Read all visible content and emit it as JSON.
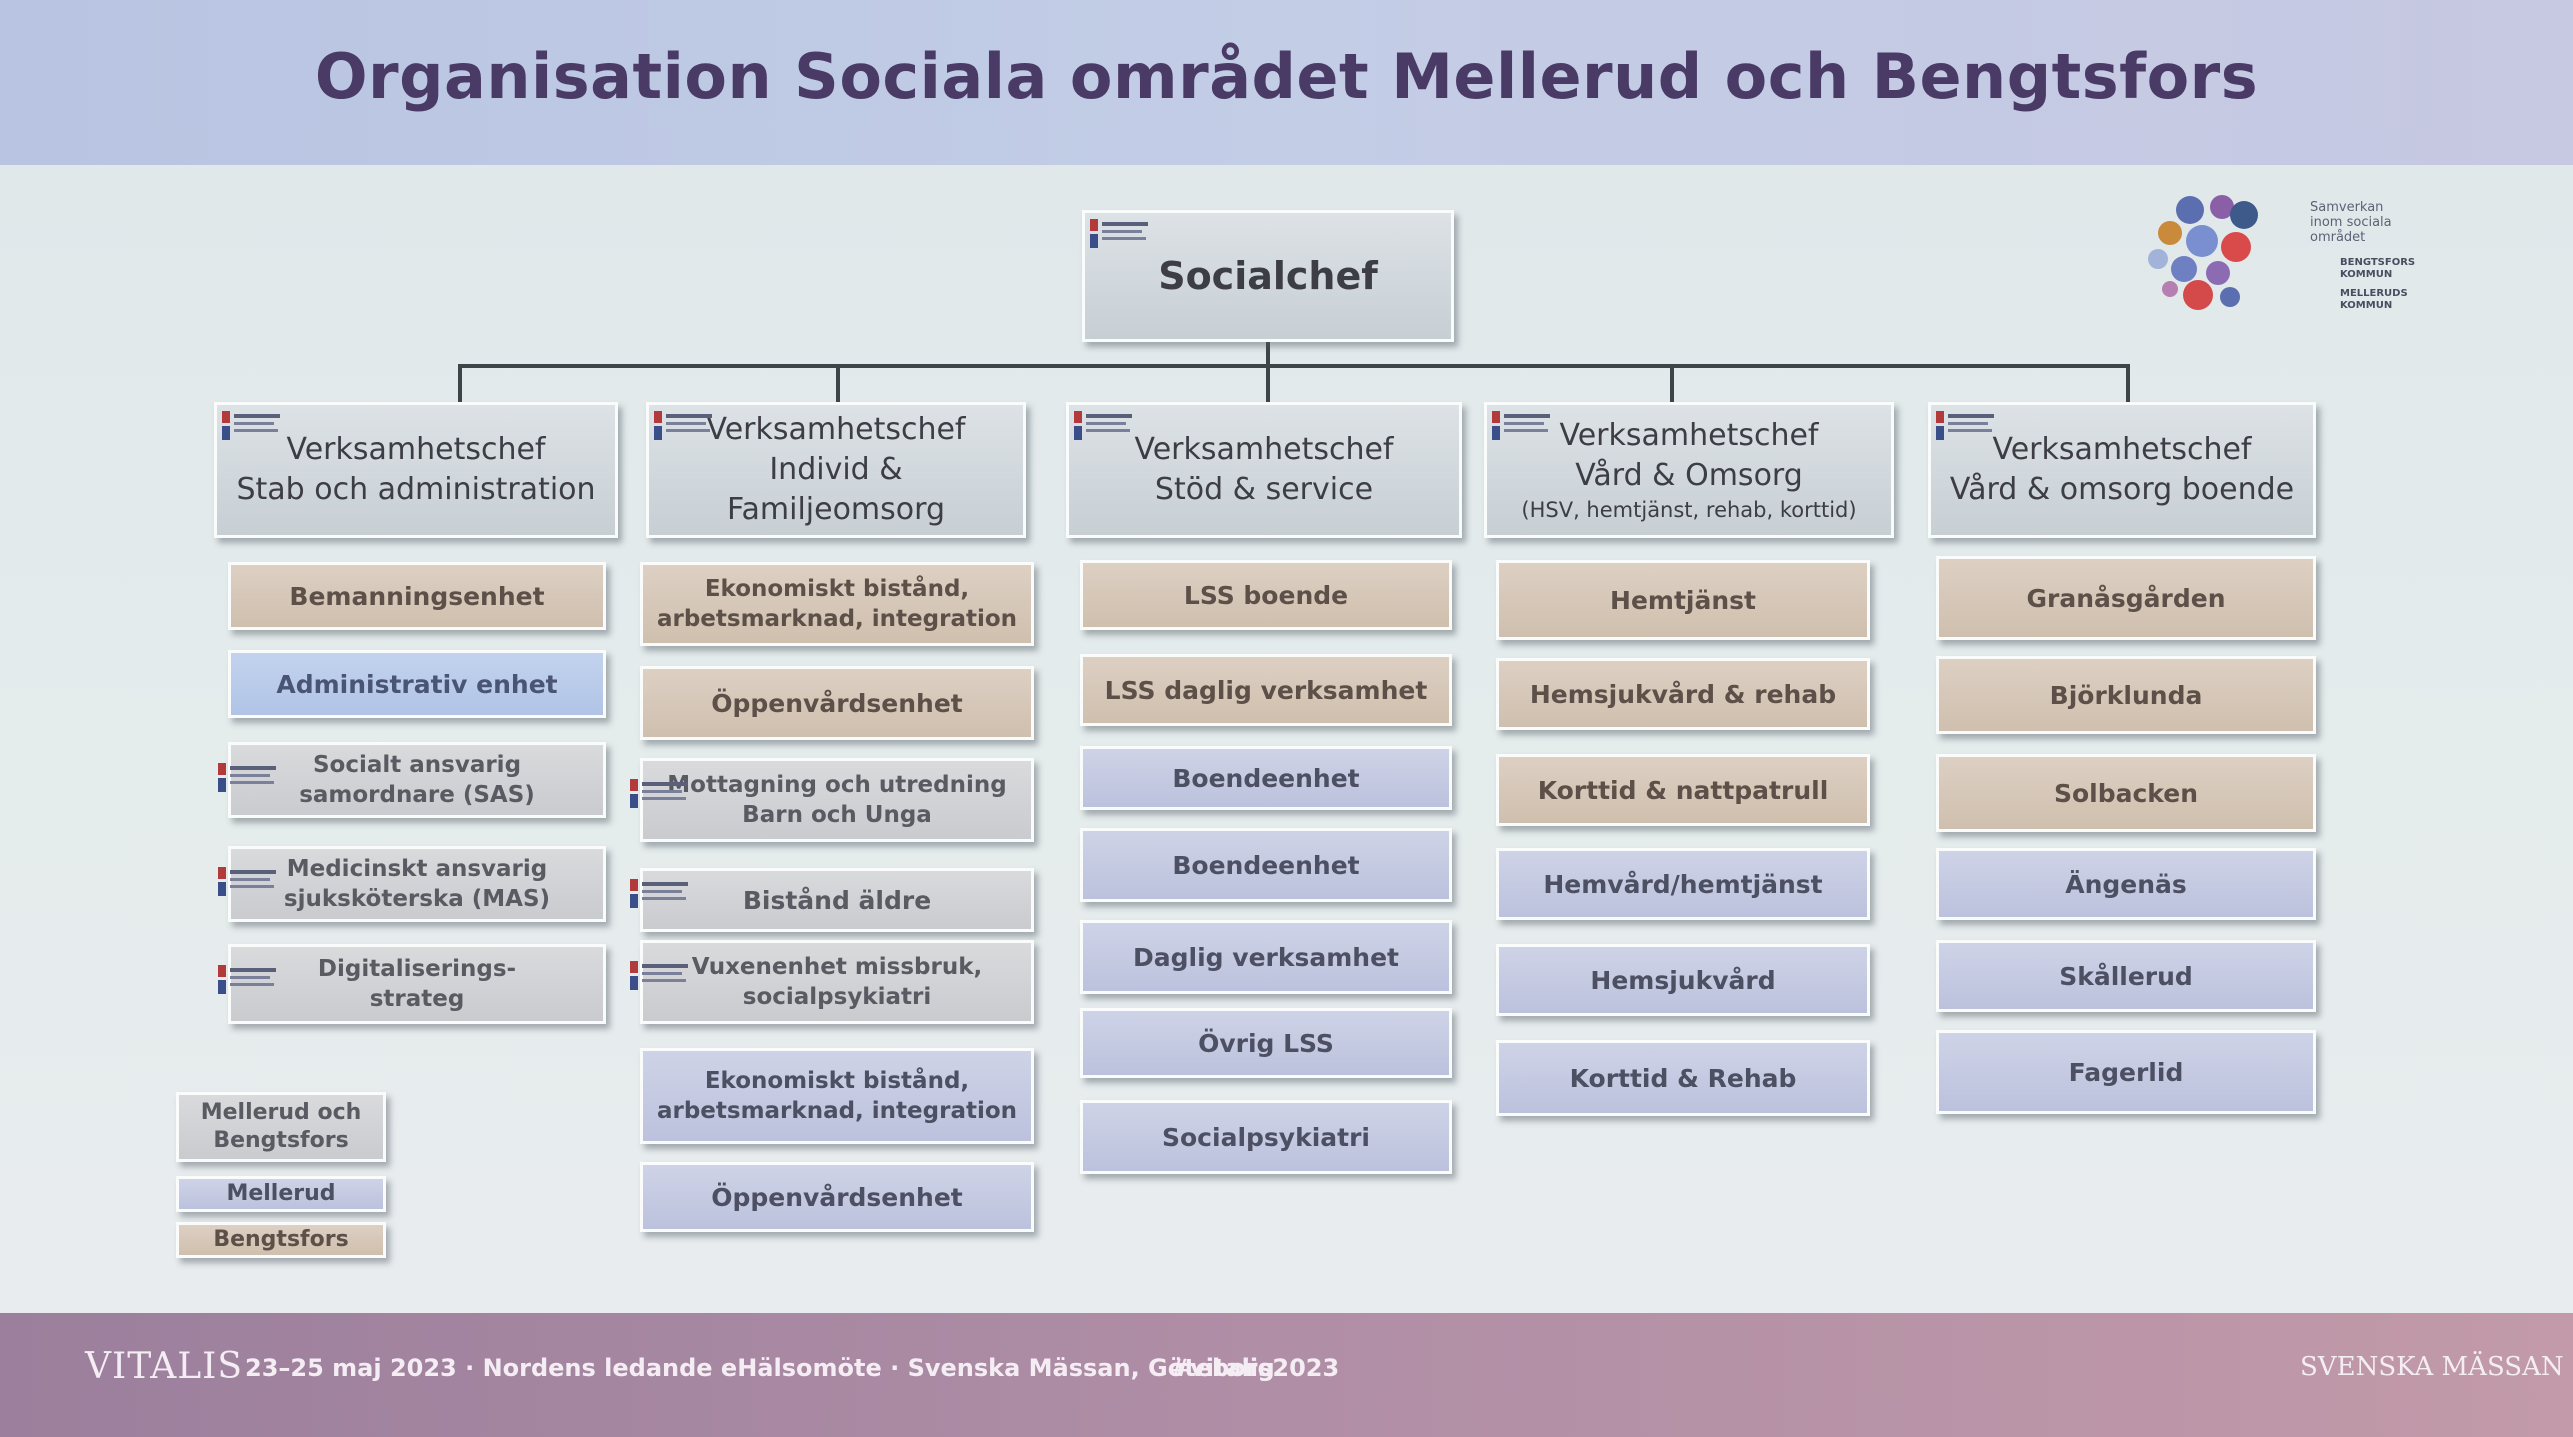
{
  "title": "Organisation Sociala området Mellerud och Bengtsfors",
  "root": "Socialchef",
  "columns": [
    {
      "head_lines": [
        "Verksamhetschef",
        "Stab och administration"
      ],
      "items": [
        {
          "text": "Bemanningsenhet",
          "type": "b"
        },
        {
          "text": "Administrativ enhet",
          "type": "admin"
        },
        {
          "lines": [
            "Socialt ansvarig",
            "samordnare (SAS)"
          ],
          "type": "mb"
        },
        {
          "lines": [
            "Medicinskt ansvarig",
            "sjuksköterska (MAS)"
          ],
          "type": "mb"
        },
        {
          "lines": [
            "Digitaliserings-",
            "strateg"
          ],
          "type": "mb"
        }
      ]
    },
    {
      "head_lines": [
        "Verksamhetschef",
        "Individ &",
        "Familjeomsorg"
      ],
      "items": [
        {
          "lines": [
            "Ekonomiskt bistånd,",
            "arbetsmarknad, integration"
          ],
          "type": "b"
        },
        {
          "text": "Öppenvårdsenhet",
          "type": "b"
        },
        {
          "lines": [
            "Mottagning och utredning",
            "Barn och Unga"
          ],
          "type": "mb"
        },
        {
          "text": "Bistånd äldre",
          "type": "mb"
        },
        {
          "lines": [
            "Vuxenenhet missbruk,",
            "socialpsykiatri"
          ],
          "type": "mb"
        },
        {
          "lines": [
            "Ekonomiskt bistånd,",
            "arbetsmarknad, integration"
          ],
          "type": "m"
        },
        {
          "text": "Öppenvårdsenhet",
          "type": "m"
        }
      ]
    },
    {
      "head_lines": [
        "Verksamhetschef",
        "Stöd & service"
      ],
      "items": [
        {
          "text": "LSS boende",
          "type": "b"
        },
        {
          "text": "LSS daglig verksamhet",
          "type": "b"
        },
        {
          "text": "Boendeenhet",
          "type": "m"
        },
        {
          "text": "Boendeenhet",
          "type": "m"
        },
        {
          "text": "Daglig verksamhet",
          "type": "m"
        },
        {
          "text": "Övrig LSS",
          "type": "m"
        },
        {
          "text": "Socialpsykiatri",
          "type": "m"
        }
      ]
    },
    {
      "head_lines": [
        "Verksamhetschef",
        "Vård & Omsorg"
      ],
      "head_sub": "(HSV, hemtjänst, rehab, korttid)",
      "items": [
        {
          "text": "Hemtjänst",
          "type": "b"
        },
        {
          "text": "Hemsjukvård & rehab",
          "type": "b"
        },
        {
          "text": "Korttid & nattpatrull",
          "type": "b"
        },
        {
          "text": "Hemvård/hemtjänst",
          "type": "m"
        },
        {
          "text": "Hemsjukvård",
          "type": "m"
        },
        {
          "text": "Korttid & Rehab",
          "type": "m"
        }
      ]
    },
    {
      "head_lines": [
        "Verksamhetschef",
        "Vård & omsorg boende"
      ],
      "items": [
        {
          "text": "Granåsgården",
          "type": "b"
        },
        {
          "text": "Björklunda",
          "type": "b"
        },
        {
          "text": "Solbacken",
          "type": "b"
        },
        {
          "text": "Ängenäs",
          "type": "m"
        },
        {
          "text": "Skållerud",
          "type": "m"
        },
        {
          "text": "Fagerlid",
          "type": "m"
        }
      ]
    }
  ],
  "legend": {
    "both_lines": [
      "Mellerud och",
      "Bengtsfors"
    ],
    "mellerud": "Mellerud",
    "bengtsfors": "Bengtsfors"
  },
  "partner_logo": {
    "text": "Samverkan inom sociala området",
    "bengtsfors": "BENGTSFORS KOMMUN",
    "mellerud": "MELLERUDS KOMMUN"
  },
  "footer": {
    "brand": "VITALIS",
    "text": "23–25 maj 2023 · Nordens ledande eHälsomöte · Svenska Mässan, Göteborg",
    "hashtag": "#vitalis2023",
    "right": "SVENSKA MÄSSAN"
  },
  "colors": {
    "title": "#4a3b66",
    "mellerud_och_bengtsfors": "#d0d2d5",
    "mellerud": "#c6cbe3",
    "bengtsfors": "#d6c7b8",
    "administrativ": "#bacce9"
  }
}
